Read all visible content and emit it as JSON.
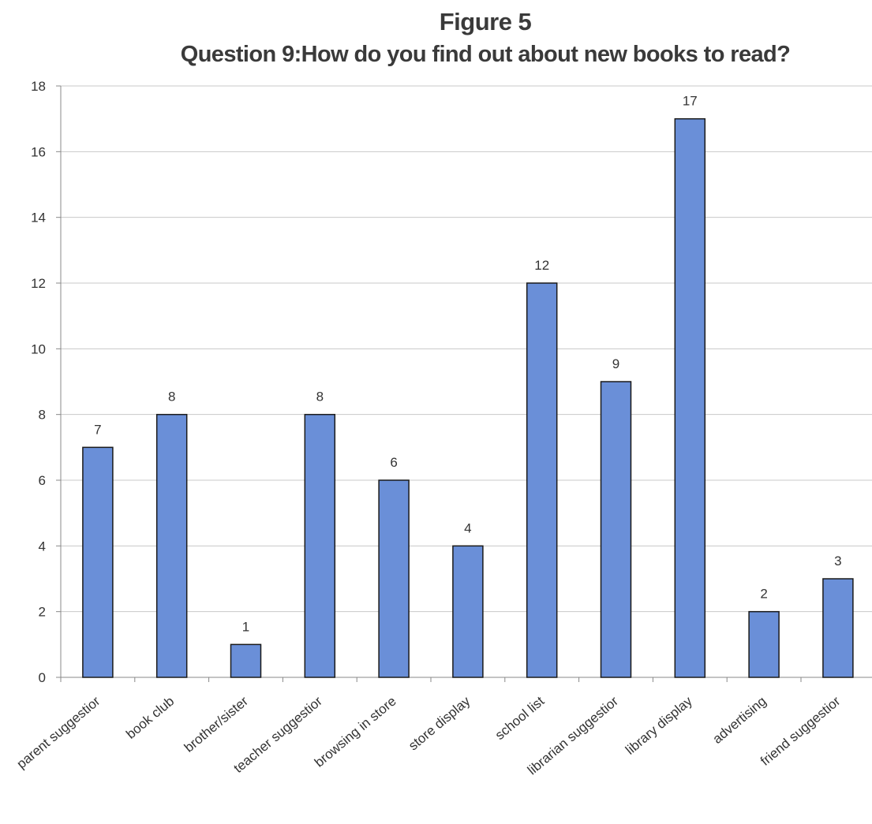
{
  "chart_data": {
    "type": "bar",
    "title": "Figure 5",
    "subtitle": "Question 9:How do you find out about new books to read?",
    "xlabel": "",
    "ylabel": "",
    "ylim": [
      0,
      18
    ],
    "yticks": [
      0,
      2,
      4,
      6,
      8,
      10,
      12,
      14,
      16,
      18
    ],
    "grid": true,
    "legend": "none",
    "categories": [
      "parent suggestior",
      "book club",
      "brother/sister",
      "teacher suggestior",
      "browsing in store",
      "store display",
      "school list",
      "librarian suggestior",
      "library display",
      "advertising",
      "friend suggestior"
    ],
    "values": [
      7,
      8,
      1,
      8,
      6,
      4,
      12,
      9,
      17,
      2,
      3
    ],
    "colors": {
      "bar": "#6a8fd8",
      "bar_edge": "#1a1a1a",
      "grid": "#c8c8c8",
      "axis": "#888888"
    }
  }
}
